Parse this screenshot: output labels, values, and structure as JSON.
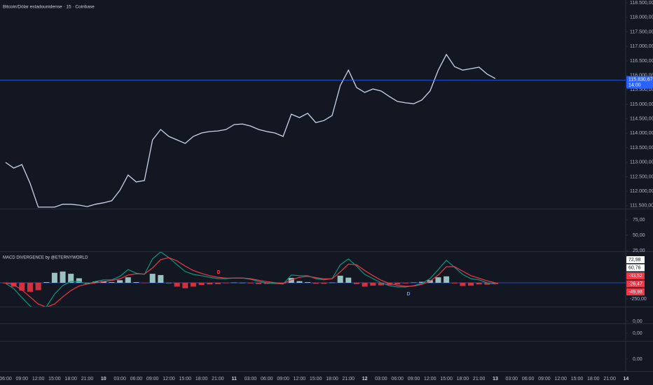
{
  "chart_data": [
    {
      "type": "line",
      "title": "Bitcoin/Dólar estadounidense · 15 · Coinbase",
      "categories": [
        "06:00",
        null,
        "09:00",
        null,
        "12:00",
        null,
        "15:00",
        null,
        "18:00",
        null,
        "21:00",
        null,
        "10",
        null,
        "03:00",
        null,
        "06:00",
        null,
        "09:00",
        null,
        "12:00",
        null,
        "15:00",
        null,
        "18:00",
        null,
        "21:00",
        null,
        "11",
        null,
        "03:00",
        null,
        "06:00",
        null,
        "09:00",
        null,
        "12:00",
        null,
        "15:00",
        null,
        "18:00",
        null,
        "21:00",
        null,
        "12",
        null,
        "03:00",
        null,
        "06:00",
        null,
        "09:00",
        null,
        "12:00",
        null,
        "15:00",
        null,
        "18:00",
        null,
        "21:00",
        null,
        "13",
        null,
        "03:00",
        null,
        "06:00",
        null,
        "09:00",
        null,
        "12:00",
        null,
        "15:00",
        null,
        "18:00",
        null,
        "21:00",
        null,
        "14"
      ],
      "series": [
        {
          "name": "Bitcoin/Dólar estadounidense",
          "color": "#c9d4ea",
          "values": [
            112995,
            112800,
            112920,
            112270,
            111450,
            111450,
            111450,
            111550,
            111550,
            111520,
            111470,
            111550,
            111600,
            111670,
            112030,
            112560,
            112320,
            112370,
            113770,
            114130,
            113890,
            113770,
            113650,
            113890,
            114010,
            114060,
            114080,
            114130,
            114300,
            114320,
            114250,
            114130,
            114060,
            114010,
            113890,
            114660,
            114540,
            114690,
            114370,
            114440,
            114610,
            115650,
            116180,
            115580,
            115410,
            115530,
            115460,
            115270,
            115100,
            115050,
            115020,
            115150,
            115460,
            116180,
            116720,
            116300,
            116180,
            116230,
            116280,
            116040,
            115890,
            null,
            null,
            null,
            null,
            null,
            null,
            null,
            null,
            null,
            null,
            null,
            null,
            null,
            null,
            null,
            null
          ]
        }
      ],
      "ylim": [
        111400,
        118600
      ],
      "yticks": [
        {
          "value": 111500,
          "label": "111.500,00"
        },
        {
          "value": 112000,
          "label": "112.000,00"
        },
        {
          "value": 112500,
          "label": "112.500,00"
        },
        {
          "value": 113000,
          "label": "113.000,00"
        },
        {
          "value": 113500,
          "label": "113.500,00"
        },
        {
          "value": 114000,
          "label": "114.000,00"
        },
        {
          "value": 114500,
          "label": "114.500,00"
        },
        {
          "value": 115000,
          "label": "115.000,00"
        },
        {
          "value": 115500,
          "label": "115.500,00"
        },
        {
          "value": 116000,
          "label": "116.000,00"
        },
        {
          "value": 116500,
          "label": "116.500,00"
        },
        {
          "value": 117000,
          "label": "117.000,00"
        },
        {
          "value": 117500,
          "label": "117.500,00"
        },
        {
          "value": 118000,
          "label": "118.000,00"
        },
        {
          "value": 118500,
          "label": "118.500,00"
        }
      ],
      "grid": false,
      "current_price": {
        "value": 115830.67,
        "label": "115.830,67",
        "countdown": "14:00",
        "color": "#2962ff"
      }
    },
    {
      "type": "macd",
      "title": "MACD DIVERGENCE by @ETERNYWORLD",
      "series": [
        {
          "name": "MACD",
          "color": "#089981",
          "values": [
            -10,
            -90,
            -230,
            -360,
            -445,
            -370,
            -175,
            -45,
            20,
            20,
            -20,
            20,
            45,
            45,
            100,
            205,
            150,
            130,
            370,
            480,
            390,
            280,
            175,
            130,
            110,
            85,
            65,
            65,
            75,
            75,
            55,
            20,
            0,
            -10,
            -20,
            120,
            110,
            110,
            65,
            45,
            65,
            280,
            370,
            260,
            130,
            65,
            0,
            -45,
            -65,
            -65,
            -45,
            -10,
            65,
            205,
            350,
            240,
            130,
            65,
            45,
            0,
            -20
          ]
        },
        {
          "name": "Signal",
          "color": "#f23645",
          "values": [
            0,
            -30,
            -110,
            -220,
            -330,
            -380,
            -330,
            -220,
            -120,
            -50,
            -20,
            0,
            20,
            35,
            60,
            120,
            140,
            135,
            230,
            360,
            390,
            340,
            260,
            190,
            145,
            110,
            85,
            72,
            72,
            74,
            64,
            40,
            18,
            2,
            -10,
            45,
            85,
            100,
            80,
            60,
            62,
            170,
            290,
            280,
            190,
            110,
            40,
            -10,
            -40,
            -55,
            -50,
            -25,
            25,
            120,
            250,
            250,
            180,
            110,
            70,
            30,
            0
          ]
        }
      ],
      "histogram": {
        "up_color": "#b2dfdb",
        "down_color": "#f23645",
        "values": [
          -10,
          -60,
          -120,
          -140,
          -115,
          10,
          155,
          175,
          140,
          70,
          0,
          20,
          25,
          10,
          40,
          85,
          10,
          -5,
          140,
          120,
          0,
          -60,
          -85,
          -60,
          -35,
          -25,
          -20,
          -7,
          3,
          1,
          -9,
          -20,
          -18,
          -12,
          -10,
          75,
          25,
          10,
          -15,
          -15,
          3,
          110,
          80,
          -20,
          -60,
          -45,
          -40,
          -35,
          -25,
          -10,
          5,
          15,
          40,
          85,
          100,
          -10,
          -50,
          -45,
          -25,
          -30,
          -20
        ]
      },
      "ylim": [
        -370,
        478
      ],
      "yticks": [
        {
          "value": -250,
          "label": "-250,00"
        }
      ],
      "value_tags": [
        {
          "value": 72.98,
          "label": "72,98",
          "color": "#ffffff"
        },
        {
          "value": 60.76,
          "label": "60,76",
          "color": "#ffffff"
        },
        {
          "value": -33.52,
          "label": "-33,52",
          "color": "#f23645"
        },
        {
          "value": -26.47,
          "label": "-26,47",
          "color": "#f23645"
        },
        {
          "value": -49.98,
          "label": "-49,98",
          "color": "#f23645"
        }
      ],
      "bear_label": "D",
      "bull_label": "D"
    }
  ],
  "panes": [
    {
      "ticks": [
        {
          "value": 75,
          "label": "75,00"
        },
        {
          "value": 50,
          "label": "50,00"
        },
        {
          "value": 25,
          "label": "25,00"
        }
      ]
    },
    {
      "ticks": [
        {
          "value": 0,
          "label": "0,00"
        }
      ]
    },
    {
      "ticks": [
        {
          "value": 0,
          "label": "0,00"
        }
      ]
    },
    {
      "ticks": [
        {
          "value": 0,
          "label": "0,00"
        }
      ]
    }
  ]
}
